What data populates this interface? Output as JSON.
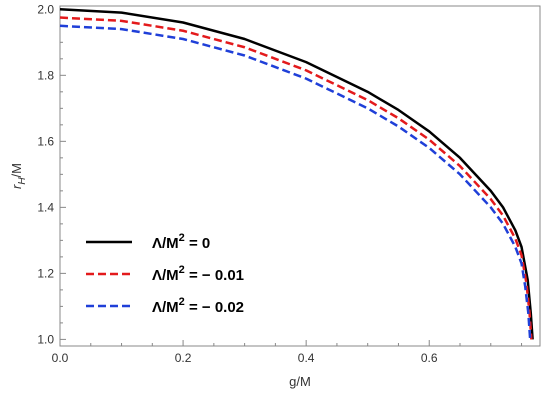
{
  "chart_data": {
    "type": "line",
    "xlabel": "g/M",
    "ylabel": "r_H/M",
    "ylabel_main": "r",
    "ylabel_sub": "H",
    "ylabel_rest": "/M",
    "xlim": [
      0,
      0.78
    ],
    "ylim": [
      0.98,
      2.01
    ],
    "xticks": [
      0.0,
      0.2,
      0.4,
      0.6
    ],
    "xtick_labels": [
      "0.0",
      "0.2",
      "0.4",
      "0.6"
    ],
    "yticks": [
      1.0,
      1.2,
      1.4,
      1.6,
      1.8,
      2.0
    ],
    "ytick_labels": [
      "1.0",
      "1.2",
      "1.4",
      "1.6",
      "1.8",
      "2.0"
    ],
    "grid": false,
    "legend_position": "bottom-left",
    "series": [
      {
        "name": "Λ/M² = 0",
        "legend_base": "Λ/M",
        "legend_sup": "2",
        "legend_tail": " = 0",
        "color": "#000000",
        "style": "solid",
        "x": [
          0.0,
          0.1,
          0.2,
          0.3,
          0.4,
          0.5,
          0.55,
          0.6,
          0.65,
          0.7,
          0.72,
          0.74,
          0.75,
          0.76,
          0.765,
          0.768
        ],
        "y": [
          2.0,
          1.99,
          1.96,
          1.91,
          1.84,
          1.75,
          1.695,
          1.63,
          1.55,
          1.45,
          1.4,
          1.33,
          1.28,
          1.18,
          1.08,
          1.0
        ]
      },
      {
        "name": "Λ/M² = − 0.01",
        "legend_base": "Λ/M",
        "legend_sup": "2",
        "legend_tail": " = − 0.01",
        "color": "#e31a1c",
        "style": "dashed",
        "x": [
          0.0,
          0.1,
          0.2,
          0.3,
          0.4,
          0.5,
          0.55,
          0.6,
          0.65,
          0.7,
          0.72,
          0.74,
          0.75,
          0.758,
          0.763,
          0.766
        ],
        "y": [
          1.975,
          1.965,
          1.935,
          1.885,
          1.815,
          1.725,
          1.67,
          1.605,
          1.525,
          1.425,
          1.375,
          1.305,
          1.255,
          1.17,
          1.08,
          1.0
        ]
      },
      {
        "name": "Λ/M² = − 0.02",
        "legend_base": "Λ/M",
        "legend_sup": "2",
        "legend_tail": " = − 0.02",
        "color": "#1f3fd8",
        "style": "dashed",
        "x": [
          0.0,
          0.1,
          0.2,
          0.3,
          0.4,
          0.5,
          0.55,
          0.6,
          0.65,
          0.7,
          0.72,
          0.74,
          0.75,
          0.756,
          0.761,
          0.764
        ],
        "y": [
          1.95,
          1.94,
          1.91,
          1.86,
          1.79,
          1.7,
          1.645,
          1.58,
          1.5,
          1.4,
          1.35,
          1.28,
          1.23,
          1.16,
          1.08,
          1.0
        ]
      }
    ]
  }
}
